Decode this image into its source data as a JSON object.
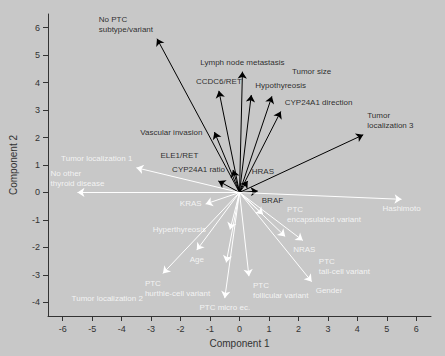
{
  "chart_data": {
    "type": "biplot",
    "xlabel": "Component 1",
    "ylabel": "Component 2",
    "xlim": [
      -6.5,
      6.5
    ],
    "ylim": [
      -4.5,
      6.5
    ],
    "xticks": [
      -6,
      -5,
      -4,
      -3,
      -2,
      -1,
      0,
      1,
      2,
      3,
      4,
      5,
      6
    ],
    "yticks": [
      -4,
      -3,
      -2,
      -1,
      0,
      1,
      2,
      3,
      4,
      5,
      6
    ],
    "grid": false,
    "background_color": "#c8c8c8",
    "series": [
      {
        "color": "#000000",
        "arrows": [
          {
            "label": "No PTC\nsubtype/variant",
            "x": -2.8,
            "y": 5.6
          },
          {
            "label": "Lymph node metastasis",
            "x": 0.1,
            "y": 4.4
          },
          {
            "label": "CCDC6/RET",
            "x": -0.7,
            "y": 3.7
          },
          {
            "label": "Hypothyreosis",
            "x": 0.4,
            "y": 3.55
          },
          {
            "label": "Tumor size",
            "x": 1.1,
            "y": 3.5
          },
          {
            "label": "Vascular invasion",
            "x": -0.85,
            "y": 2.2
          },
          {
            "label": "CYP24A1 direction",
            "x": 1.4,
            "y": 2.95
          },
          {
            "label": "Tumor\nlocalization 3",
            "x": 4.2,
            "y": 2.1
          },
          {
            "label": "CYP24A1 ratio",
            "x": -0.22,
            "y": 0.82
          },
          {
            "label": "ELE1/RET",
            "x": -0.72,
            "y": 0.42
          },
          {
            "label": "HRAS",
            "x": 0.28,
            "y": 0.42
          },
          {
            "label": "BRAF",
            "x": 0.62,
            "y": 0.05
          }
        ]
      },
      {
        "color": "#ffffff",
        "arrows": [
          {
            "label": "No other\nthyroid disease",
            "x": -5.5,
            "y": 0.0
          },
          {
            "label": "Tumor localization 1",
            "x": -3.5,
            "y": 0.9
          },
          {
            "label": "KRAS",
            "x": -1.15,
            "y": -0.42
          },
          {
            "label": "Age",
            "x": -1.45,
            "y": -2.1
          },
          {
            "label": "Hyperthyreosis",
            "x": -0.32,
            "y": -1.35
          },
          {
            "label": "PTC\nhurthle-cell variant",
            "x": -0.45,
            "y": -2.55
          },
          {
            "label": "PTC\nfollicular variant",
            "x": 0.32,
            "y": -3.05
          },
          {
            "label": "PTC micro ec.",
            "x": -0.5,
            "y": -3.85
          },
          {
            "label": "Tumor localization 2",
            "x": -2.6,
            "y": -2.95
          },
          {
            "label": "PTC\nencapsulated variant",
            "x": 0.8,
            "y": -0.8
          },
          {
            "label": "NRAS",
            "x": 1.55,
            "y": -1.6
          },
          {
            "label": "PTC\ntall-cell variant",
            "x": 2.15,
            "y": -1.75
          },
          {
            "label": "Gender",
            "x": 2.45,
            "y": -3.25
          },
          {
            "label": "Hashimoto",
            "x": 5.5,
            "y": -0.25
          }
        ]
      }
    ]
  }
}
